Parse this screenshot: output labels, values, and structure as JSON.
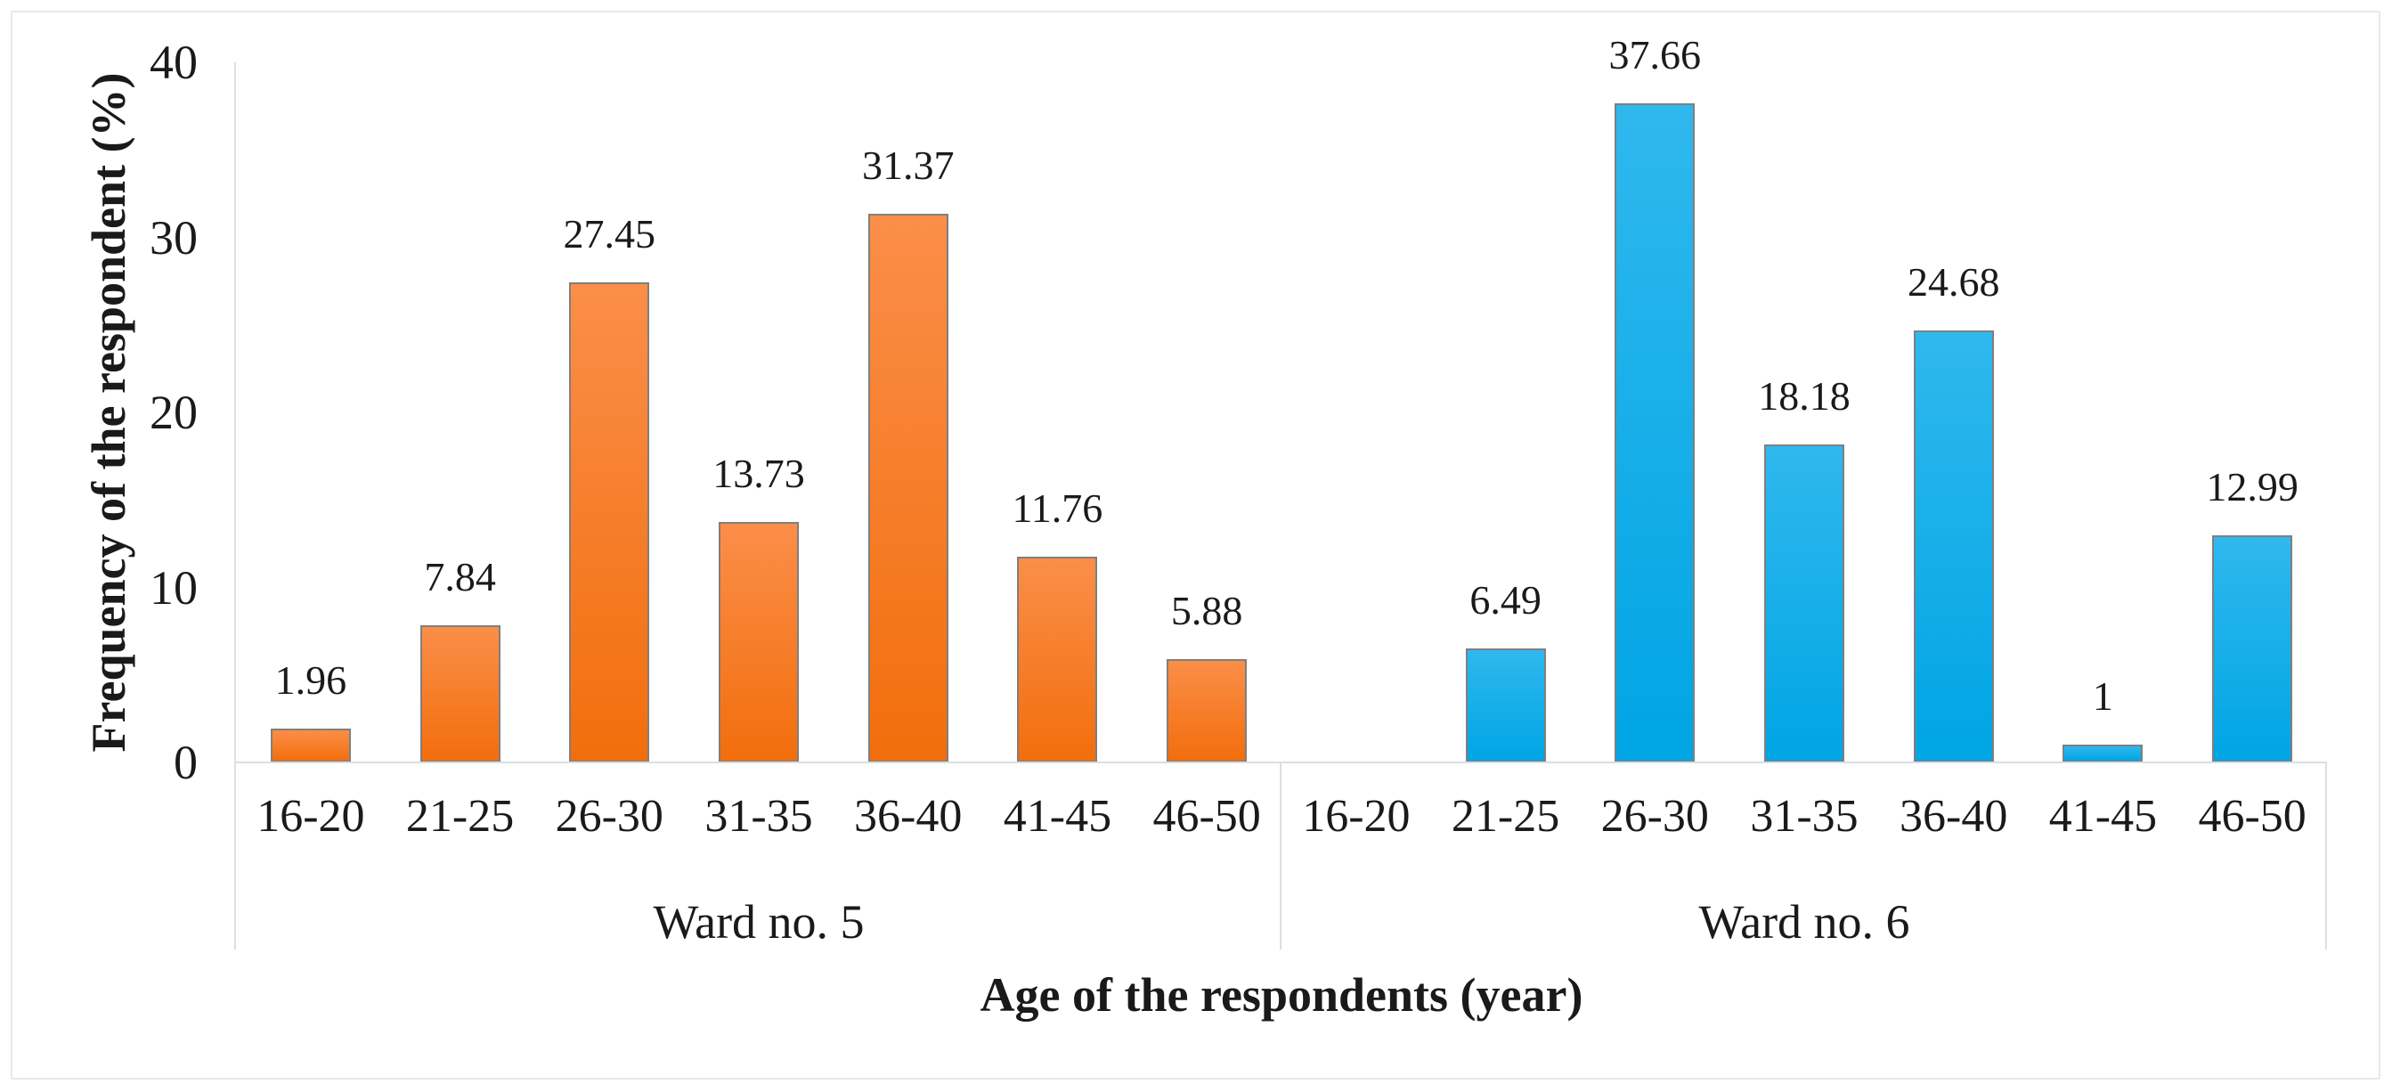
{
  "figure": {
    "background": "#FFFFFF",
    "frame_border_color": "#E4E9EC"
  },
  "chart_data": {
    "type": "bar",
    "title": "",
    "xlabel": "Age of the respondents (year)",
    "ylabel": "Frequency of the respondent (%)",
    "ylim": [
      0,
      40
    ],
    "yticks": [
      0,
      10,
      20,
      30,
      40
    ],
    "grid": false,
    "legend_position": "none",
    "data_labels": true,
    "categories": [
      "16-20",
      "21-25",
      "26-30",
      "31-35",
      "36-40",
      "41-45",
      "46-50"
    ],
    "series": [
      {
        "name": "Ward no. 5",
        "values": [
          1.96,
          7.84,
          27.45,
          13.73,
          31.37,
          11.76,
          5.88
        ],
        "bar_color_top": "#FB8E49",
        "bar_color_bottom": "#F26E0C"
      },
      {
        "name": "Ward no. 6",
        "values": [
          0,
          6.49,
          37.66,
          18.18,
          24.68,
          1,
          12.99
        ],
        "bar_color_top": "#2FB8EE",
        "bar_color_bottom": "#00A5E4"
      }
    ],
    "bar_border_color": "#7F7F7F",
    "axis_line_color": "#D8DFE5",
    "text_color": "#1A1A1A"
  }
}
